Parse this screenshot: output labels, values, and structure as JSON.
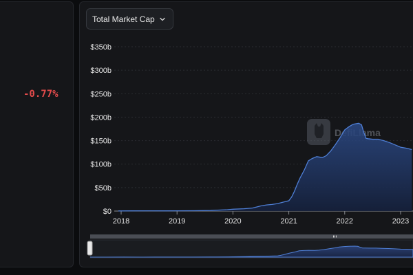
{
  "summary": {
    "change_24h": "-0.77%"
  },
  "selector": {
    "selected": "Total Market Cap",
    "icon": "chevron-down-icon"
  },
  "watermark": {
    "text": "DefiLlama"
  },
  "colors": {
    "accent": "#4f7fd6",
    "negative": "#e24b4b",
    "panel": "#151619"
  },
  "chart_data": {
    "type": "area",
    "title": "",
    "xlabel": "",
    "ylabel": "",
    "ylim": [
      0,
      350
    ],
    "xlim": [
      2018.0,
      2023.22
    ],
    "y_ticks": [
      0,
      50,
      100,
      150,
      200,
      250,
      300,
      350
    ],
    "y_tick_labels": [
      "$0",
      "$50b",
      "$100b",
      "$150b",
      "$200b",
      "$250b",
      "$300b",
      "$350b"
    ],
    "x_ticks": [
      2018,
      2019,
      2020,
      2021,
      2022,
      2023
    ],
    "x_tick_labels": [
      "2018",
      "2019",
      "2020",
      "2021",
      "2022",
      "2023"
    ],
    "grid": true,
    "legend": "none",
    "series": [
      {
        "x": [
          2017.95,
          2018.2,
          2018.5,
          2018.8,
          2019.0,
          2019.3,
          2019.6,
          2019.9,
          2020.0,
          2020.2,
          2020.35,
          2020.5,
          2020.6,
          2020.7,
          2020.8,
          2020.9,
          2021.0,
          2021.05,
          2021.1,
          2021.15,
          2021.2,
          2021.28,
          2021.35,
          2021.42,
          2021.5,
          2021.6,
          2021.67,
          2021.75,
          2021.83,
          2021.92,
          2022.0,
          2022.08,
          2022.15,
          2022.2,
          2022.25,
          2022.3,
          2022.34,
          2022.38,
          2022.42,
          2022.5,
          2022.6,
          2022.7,
          2022.8,
          2022.9,
          2023.0,
          2023.1,
          2023.2
        ],
        "y": [
          0.3,
          0.4,
          0.6,
          0.5,
          0.6,
          0.8,
          1.2,
          3,
          4,
          5,
          6.5,
          11,
          13,
          14,
          16,
          19,
          22,
          30,
          42,
          57,
          70,
          88,
          107,
          112,
          116,
          114,
          118,
          128,
          141,
          157,
          173,
          180,
          185,
          186,
          187,
          184,
          168,
          155,
          154,
          153,
          153,
          150,
          146,
          141,
          136,
          134,
          131
        ]
      }
    ]
  }
}
